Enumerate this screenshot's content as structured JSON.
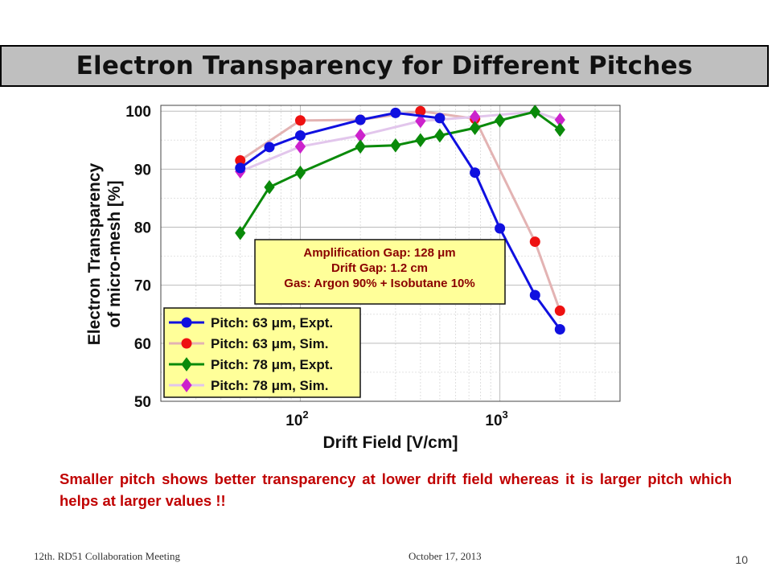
{
  "slide": {
    "title": "Electron Transparency for Different Pitches",
    "note": "Smaller pitch shows better transparency at lower drift field whereas it is larger pitch which helps at larger values !!",
    "footer_left": "12th. RD51 Collaboration Meeting",
    "footer_center": "October 17, 2013",
    "page_number": "10"
  },
  "chart_data": {
    "type": "line",
    "xlabel": "Drift Field [V/cm]",
    "ylabel_lines": [
      "Electron Transparency",
      "of micro-mesh [%]"
    ],
    "x_scale": "log",
    "xlim": [
      20,
      4000
    ],
    "ylim": [
      50,
      101
    ],
    "yticks": [
      50,
      60,
      70,
      80,
      90,
      100
    ],
    "xticks": [
      {
        "value": 100,
        "base": "10",
        "exp": "2"
      },
      {
        "value": 1000,
        "base": "10",
        "exp": "3"
      }
    ],
    "grid": true,
    "legend_position": "bottom-left",
    "info_box": {
      "lines": [
        "Amplification Gap: 128 μm",
        "Drift Gap: 1.2 cm",
        "Gas: Argon 90% + Isobutane 10%"
      ]
    },
    "series": [
      {
        "name": "Pitch: 63 μm, Expt.",
        "color": "#1010e0",
        "line_color": "#1010e0",
        "marker": "circle",
        "x": [
          50,
          70,
          100,
          200,
          300,
          500,
          750,
          1000,
          1500,
          2000
        ],
        "y": [
          90.2,
          93.8,
          95.8,
          98.5,
          99.7,
          98.8,
          89.4,
          79.8,
          68.3,
          62.4
        ]
      },
      {
        "name": "Pitch: 63 μm, Sim.",
        "color": "#ee1111",
        "line_color": "#e3b3b3",
        "marker": "circle",
        "x": [
          50,
          100,
          200,
          400,
          750,
          1500,
          2000
        ],
        "y": [
          91.5,
          98.4,
          98.5,
          100.0,
          98.7,
          77.5,
          65.6
        ]
      },
      {
        "name": "Pitch: 78 μm, Expt.",
        "color": "#0a8a0a",
        "line_color": "#0a8a0a",
        "marker": "diamond",
        "x": [
          50,
          70,
          100,
          200,
          300,
          400,
          500,
          750,
          1000,
          1500,
          2000
        ],
        "y": [
          79.0,
          86.9,
          89.4,
          93.9,
          94.1,
          95.0,
          95.8,
          97.1,
          98.4,
          99.9,
          96.8
        ]
      },
      {
        "name": "Pitch: 78 μm, Sim.",
        "color": "#cc22cc",
        "line_color": "#e2c6ec",
        "marker": "diamond",
        "x": [
          50,
          100,
          200,
          400,
          750,
          1500,
          2000
        ],
        "y": [
          89.6,
          93.9,
          95.8,
          98.3,
          99.0,
          99.9,
          98.5
        ]
      }
    ]
  }
}
